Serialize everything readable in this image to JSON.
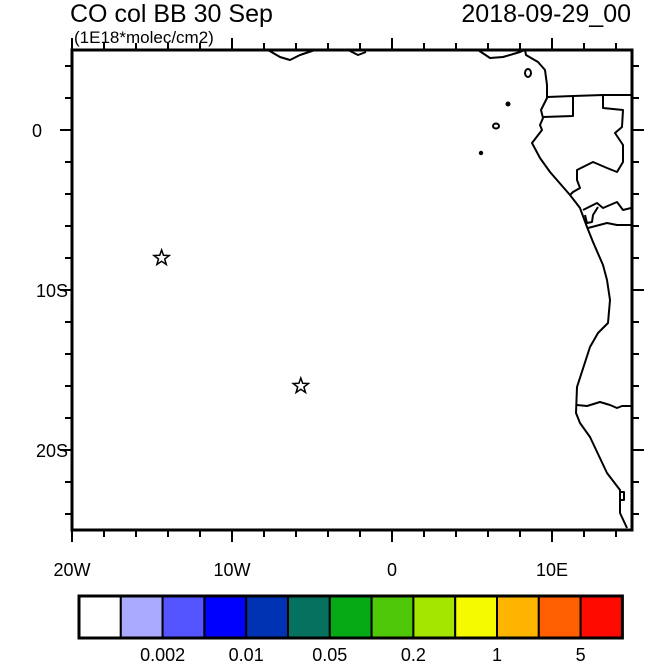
{
  "title": {
    "left": "CO col BB 30 Sep",
    "right": "2018-09-29_00",
    "units": "(1E18*molec/cm2)"
  },
  "map": {
    "lon_range": [
      -20,
      15
    ],
    "lat_range": [
      -25,
      5
    ],
    "lon_labels": [
      {
        "lon": -20,
        "label": "20W"
      },
      {
        "lon": -10,
        "label": "10W"
      },
      {
        "lon": 0,
        "label": "0"
      },
      {
        "lon": 10,
        "label": "10E"
      }
    ],
    "lat_labels": [
      {
        "lat": 0,
        "label": "0"
      },
      {
        "lat": -10,
        "label": "10S"
      },
      {
        "lat": -20,
        "label": "20S"
      }
    ],
    "markers": [
      {
        "name": "star",
        "lon": -14.4,
        "lat": -8.0
      },
      {
        "name": "star",
        "lon": -5.7,
        "lat": -16.0
      }
    ]
  },
  "colorbar": {
    "colors": [
      "#ffffff",
      "#aaaaff",
      "#5555ff",
      "#0000ff",
      "#0033b3",
      "#05725f",
      "#05aa15",
      "#50c80a",
      "#a5e600",
      "#f5fa00",
      "#ffb400",
      "#ff5f00",
      "#ff0a00"
    ],
    "labels": [
      {
        "boundary": 2,
        "label": "0.002"
      },
      {
        "boundary": 4,
        "label": "0.01"
      },
      {
        "boundary": 6,
        "label": "0.05"
      },
      {
        "boundary": 8,
        "label": "0.2"
      },
      {
        "boundary": 10,
        "label": "1"
      },
      {
        "boundary": 12,
        "label": "5"
      }
    ]
  }
}
